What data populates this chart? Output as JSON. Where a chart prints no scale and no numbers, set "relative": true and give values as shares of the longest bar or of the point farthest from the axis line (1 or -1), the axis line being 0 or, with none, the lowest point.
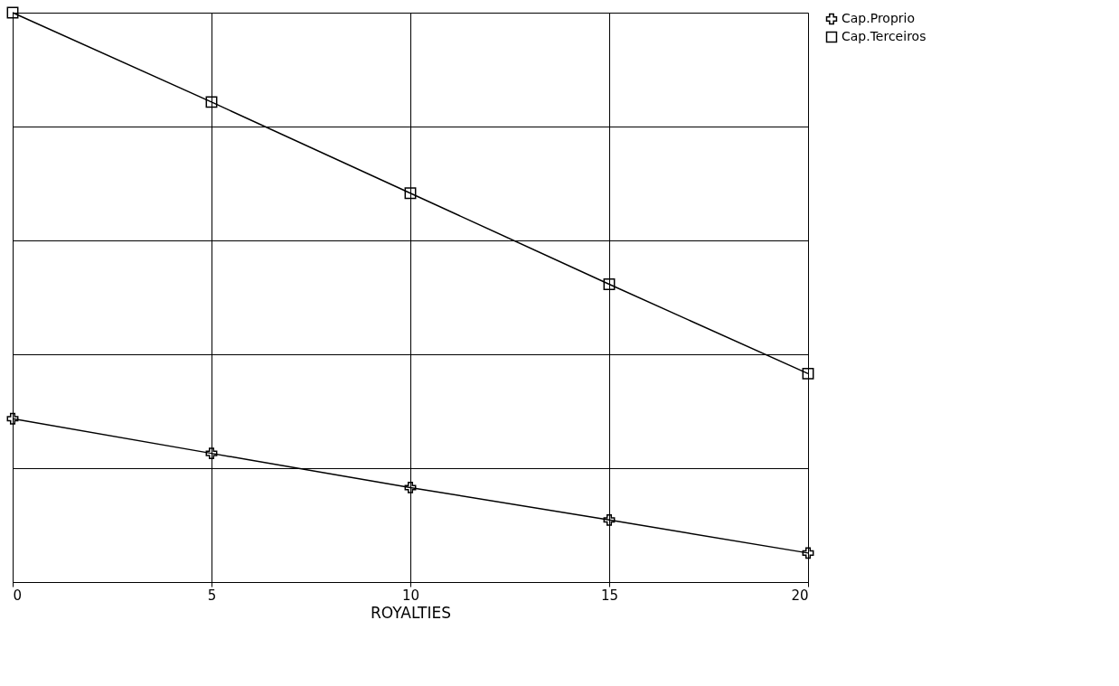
{
  "chart_data": {
    "type": "line",
    "xlabel": "ROYALTIES",
    "x": [
      0,
      5,
      10,
      15,
      20
    ],
    "xlim": [
      0,
      20
    ],
    "xticks": [
      0,
      5,
      10,
      15,
      20
    ],
    "relative": true,
    "grid": true,
    "legend": "top right",
    "series": [
      {
        "name": "Cap.Proprio",
        "color": "#000000",
        "marker": "cross",
        "values": [
          0.287,
          0.226,
          0.166,
          0.109,
          0.051
        ]
      },
      {
        "name": "Cap.Terceiros",
        "color": "#000000",
        "marker": "square",
        "values": [
          1,
          0.843,
          0.683,
          0.523,
          0.366
        ]
      }
    ]
  }
}
